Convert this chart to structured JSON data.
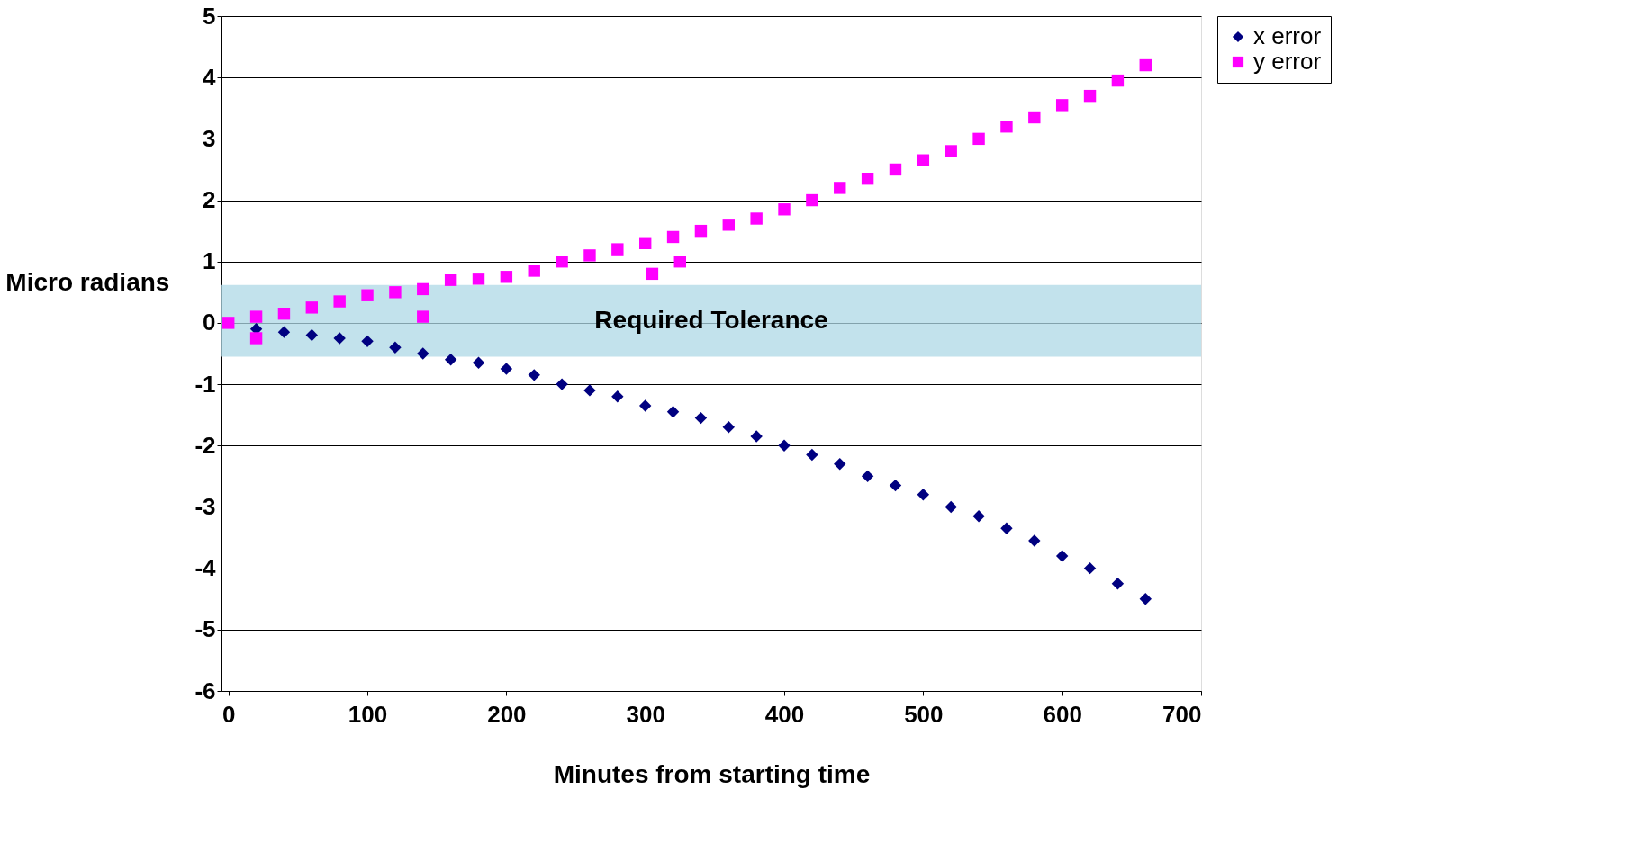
{
  "chart_data": {
    "type": "scatter",
    "xlabel": "Minutes from starting time",
    "ylabel": "Micro radians",
    "xlim": [
      -5,
      700
    ],
    "xticks": [
      0,
      100,
      200,
      300,
      400,
      500,
      600,
      700
    ],
    "ylim": [
      -6,
      5
    ],
    "yticks": [
      -6,
      -5,
      -4,
      -3,
      -2,
      -1,
      0,
      1,
      2,
      3,
      4,
      5
    ],
    "grid": "y",
    "legend": "right",
    "bands": [
      {
        "axis": "y",
        "from": -0.55,
        "to": 0.62,
        "label": "Required Tolerance",
        "color": "#add8e6"
      }
    ],
    "series": [
      {
        "name": "x error",
        "color": "#000080",
        "marker": "diamond",
        "x": [
          20,
          40,
          60,
          80,
          100,
          120,
          140,
          160,
          180,
          200,
          220,
          240,
          260,
          280,
          300,
          320,
          340,
          360,
          380,
          400,
          420,
          440,
          460,
          480,
          500,
          520,
          540,
          560,
          580,
          600,
          620,
          640,
          660
        ],
        "values": [
          -0.1,
          -0.15,
          -0.2,
          -0.25,
          -0.3,
          -0.4,
          -0.5,
          -0.6,
          -0.65,
          -0.75,
          -0.85,
          -1.0,
          -1.1,
          -1.2,
          -1.35,
          -1.45,
          -1.55,
          -1.7,
          -1.85,
          -2.0,
          -2.15,
          -2.3,
          -2.5,
          -2.65,
          -2.8,
          -3.0,
          -3.15,
          -3.35,
          -3.55,
          -3.8,
          -4.0,
          -4.25,
          -4.5
        ]
      },
      {
        "name": "y error",
        "color": "#ff00ff",
        "marker": "square",
        "x": [
          0,
          20,
          40,
          60,
          80,
          100,
          120,
          140,
          160,
          180,
          200,
          220,
          240,
          260,
          280,
          300,
          320,
          340,
          360,
          380,
          400,
          420,
          440,
          460,
          480,
          500,
          520,
          540,
          560,
          580,
          600,
          620,
          640,
          660,
          20,
          140,
          305,
          325
        ],
        "values": [
          0,
          0.1,
          0.15,
          0.25,
          0.35,
          0.45,
          0.5,
          0.55,
          0.7,
          0.72,
          0.75,
          0.85,
          1.0,
          1.1,
          1.2,
          1.3,
          1.4,
          1.5,
          1.6,
          1.7,
          1.85,
          2.0,
          2.2,
          2.35,
          2.5,
          2.65,
          2.8,
          3.0,
          3.2,
          3.35,
          3.55,
          3.7,
          3.95,
          4.2,
          -0.25,
          0.1,
          0.8,
          1.0
        ]
      }
    ]
  }
}
